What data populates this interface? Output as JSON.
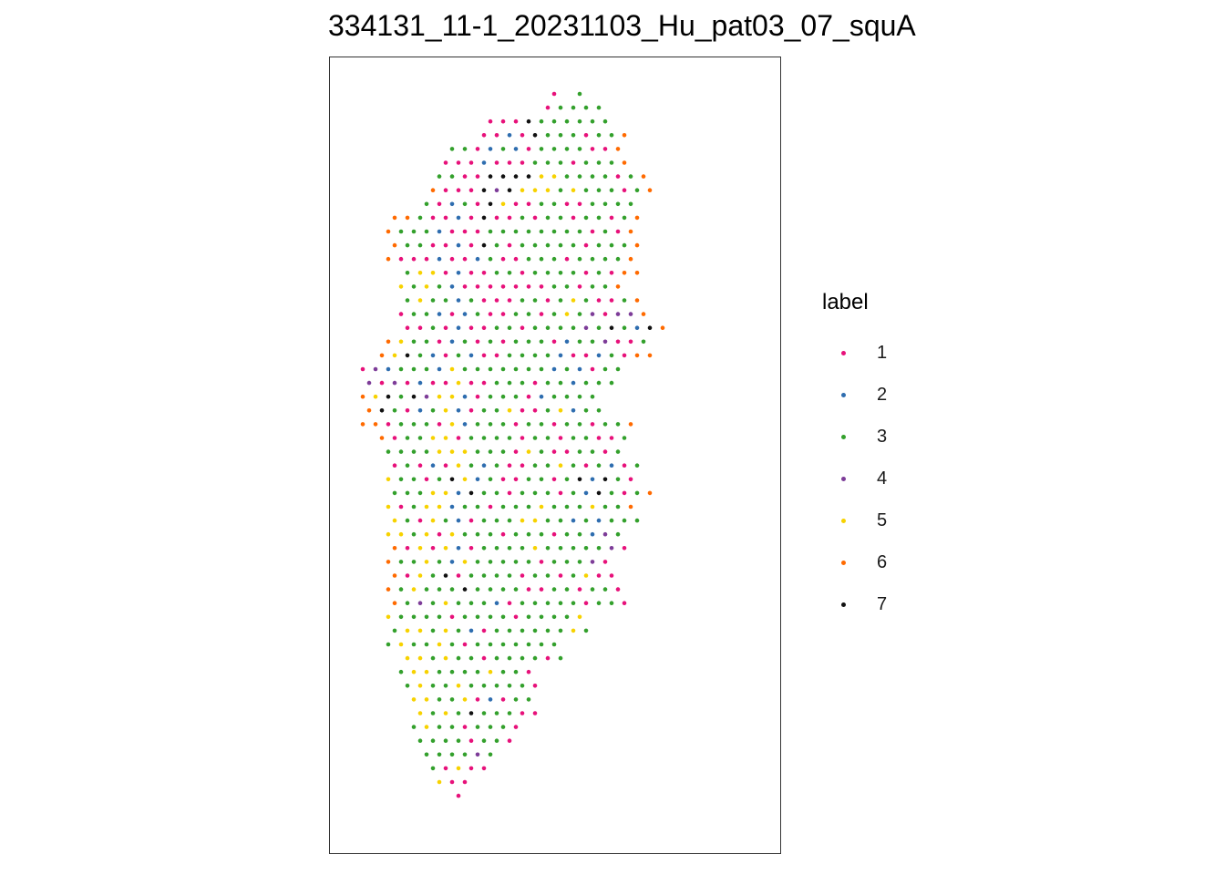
{
  "chart_data": {
    "type": "scatter",
    "title": "334131_11-1_20231103_Hu_pat03_07_squA",
    "legend": {
      "title": "label",
      "placement": "right",
      "entries": [
        {
          "label": "1",
          "color": "#E7117A"
        },
        {
          "label": "2",
          "color": "#2E6DAF"
        },
        {
          "label": "3",
          "color": "#33A02C"
        },
        {
          "label": "4",
          "color": "#7D3C98"
        },
        {
          "label": "5",
          "color": "#F7D200"
        },
        {
          "label": "6",
          "color": "#FF6A00"
        },
        {
          "label": "7",
          "color": "#111111"
        }
      ]
    },
    "grid": false,
    "axes_visible": false,
    "rows": [
      {
        "start_col": 16,
        "labels": "1  3"
      },
      {
        "start_col": 15,
        "labels": "1 3 3 3 3"
      },
      {
        "start_col": 11,
        "labels": "1 1 1 7 3 3 3 3 3 3"
      },
      {
        "start_col": 10,
        "labels": "1 1 2 1 7 3 3 3 1 3 3 6"
      },
      {
        "start_col": 8,
        "labels": "3 3 1 2 3 2 1 3 3 3 3 1 1 6"
      },
      {
        "start_col": 7,
        "labels": "1 1 1 2 1 1 1 3 3 3 1 3 3 3 6"
      },
      {
        "start_col": 7,
        "labels": "3 3 1 1 7 7 7 7 5 5 3 3 3 3 1 3 6"
      },
      {
        "start_col": 6,
        "labels": "6 1 1 1 7 4 7 5 5 5 3 5 3 3 3 1 3 6"
      },
      {
        "start_col": 6,
        "labels": "3 1 2 3 1 7 5 1 1 3 3 1 1 3 3 3 3"
      },
      {
        "start_col": 3,
        "labels": "6 6 3 1 1 2 1 7 1 1 3 1 3 3 1 3 3 1 3 6"
      },
      {
        "start_col": 3,
        "labels": "6 3 3 3 2 1 1 1 3 3 3 3 3 3 3 3 1 3 1 6"
      },
      {
        "start_col": 3,
        "labels": "6 3 3 1 1 2 1 7 3 1 3 3 3 3 3 1 3 3 3 6"
      },
      {
        "start_col": 3,
        "labels": "6 1 1 1 2 1 1 2 3 1 1 3 3 3 1 3 3 3 3 6"
      },
      {
        "start_col": 4,
        "labels": "3 5 5 1 2 1 1 3 3 1 3 3 3 3 1 3 1 6 6"
      },
      {
        "start_col": 4,
        "labels": "5 3 5 3 2 1 1 1 1 1 1 1 3 3 1 3 3 6"
      },
      {
        "start_col": 4,
        "labels": "3 5 3 3 2 3 1 1 1 3 3 1 3 5 3 1 1 3 6"
      },
      {
        "start_col": 4,
        "labels": "1 3 3 2 1 2 3 1 1 3 3 1 3 5 3 4 1 4 4 6"
      },
      {
        "start_col": 4,
        "labels": "1 1 3 1 2 1 1 3 3 1 3 3 3 3 4 3 7 3 2 7 6"
      },
      {
        "start_col": 3,
        "labels": "6 5 3 3 1 2 3 1 3 1 3 3 3 1 2 3 3 4 1 1 3"
      },
      {
        "start_col": 2,
        "labels": "6 5 7 3 2 1 3 2 1 1 3 3 3 3 2 1 1 2 3 1 6 6"
      },
      {
        "start_col": 1,
        "labels": "1 4 2 3 3 3 2 5 3 3 3 3 3 3 3 2 3 2 1 3 3"
      },
      {
        "start_col": 1,
        "labels": "4 1 4 1 2 1 1 5 1 1 3 3 3 1 3 3 2 3 3 3"
      },
      {
        "start_col": 1,
        "labels": "6 5 7 3 7 4 5 5 2 1 3 3 3 1 2 3 3 3 3"
      },
      {
        "start_col": 1,
        "labels": "6 7 3 1 2 3 5 2 1 3 3 5 1 1 3 5 2 3 3"
      },
      {
        "start_col": 1,
        "labels": "6 6 1 3 3 3 1 5 2 3 3 3 1 3 3 1 3 3 1 3 3 6"
      },
      {
        "start_col": 2,
        "labels": "6 1 3 3 5 5 1 3 3 3 3 1 3 3 1 3 3 1 1 3"
      },
      {
        "start_col": 3,
        "labels": "3 3 3 3 5 5 5 3 3 3 1 5 3 1 1 3 3 1 3"
      },
      {
        "start_col": 3,
        "labels": "1 3 1 2 1 5 3 2 3 1 1 3 3 5 3 1 3 2 1 3"
      },
      {
        "start_col": 3,
        "labels": "5 3 3 1 3 7 5 2 3 1 1 3 3 1 3 7 2 7 3 1"
      },
      {
        "start_col": 3,
        "labels": "3 3 3 5 5 2 7 3 3 1 3 3 3 1 3 2 7 3 1 3 6"
      },
      {
        "start_col": 3,
        "labels": "5 1 3 5 5 2 3 3 1 3 3 3 5 3 3 3 5 3 3 6"
      },
      {
        "start_col": 3,
        "labels": "5 3 1 5 3 2 1 3 3 3 5 5 3 3 2 3 2 3 3 3"
      },
      {
        "start_col": 3,
        "labels": "5 5 3 5 1 5 3 3 3 1 3 3 3 1 3 3 2 4 3"
      },
      {
        "start_col": 3,
        "labels": "6 1 5 1 5 2 1 3 3 3 3 5 3 3 3 3 3 4 1"
      },
      {
        "start_col": 3,
        "labels": "6 3 3 5 3 2 5 3 3 3 3 3 1 3 3 3 4 1"
      },
      {
        "start_col": 3,
        "labels": "6 1 5 3 7 1 3 3 3 3 1 3 3 1 3 5 1 1"
      },
      {
        "start_col": 3,
        "labels": "6 3 5 3 3 3 7 3 3 3 3 1 1 3 3 1 3 3 1"
      },
      {
        "start_col": 3,
        "labels": "6 3 4 3 5 3 3 3 2 1 3 3 3 3 3 1 3 3 1"
      },
      {
        "start_col": 3,
        "labels": "5 3 3 3 3 1 3 3 3 3 1 3 3 3 3 5"
      },
      {
        "start_col": 3,
        "labels": "3 5 5 3 5 3 2 1 3 3 3 3 3 3 5 3"
      },
      {
        "start_col": 3,
        "labels": "3 5 3 3 5 3 1 3 3 3 3 3 3 3"
      },
      {
        "start_col": 4,
        "labels": "5 5 3 5 3 3 1 3 3 3 3 1 3"
      },
      {
        "start_col": 4,
        "labels": "3 5 5 3 3 3 3 5 3 3 1"
      },
      {
        "start_col": 4,
        "labels": "3 5 3 3 5 3 3 3 3 3 1"
      },
      {
        "start_col": 5,
        "labels": "5 5 3 3 5 1 2 1 3 3"
      },
      {
        "start_col": 5,
        "labels": "5 3 5 3 7 3 3 3 1 1"
      },
      {
        "start_col": 5,
        "labels": "3 5 3 3 1 3 3 3 1"
      },
      {
        "start_col": 5,
        "labels": "3 3 3 3 1 3 3 1"
      },
      {
        "start_col": 6,
        "labels": "3 3 3 3 4 3"
      },
      {
        "start_col": 6,
        "labels": "3 1 5 1 1"
      },
      {
        "start_col": 7,
        "labels": "5 1 1"
      },
      {
        "start_col": 8,
        "labels": "1"
      }
    ]
  }
}
